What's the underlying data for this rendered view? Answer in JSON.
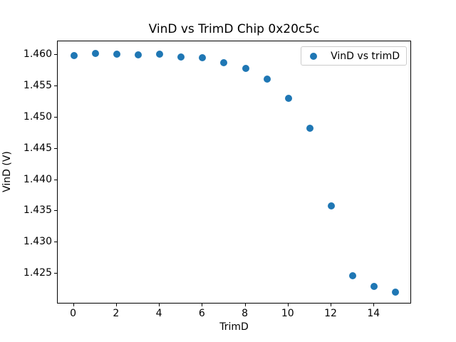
{
  "chart_data": {
    "type": "scatter",
    "title": "VinD vs TrimD Chip 0x20c5c",
    "xlabel": "TrimD",
    "ylabel": "VinD (V)",
    "x": [
      0,
      1,
      2,
      3,
      4,
      5,
      6,
      7,
      8,
      9,
      10,
      11,
      12,
      13,
      14,
      15
    ],
    "y": [
      1.4599,
      1.4603,
      1.4601,
      1.46,
      1.4601,
      1.4597,
      1.4596,
      1.4588,
      1.4579,
      1.4562,
      1.4531,
      1.4483,
      1.4358,
      1.4247,
      1.4229,
      1.422
    ],
    "series": [
      {
        "name": "VinD vs trimD",
        "marker": "circle-dot",
        "color": "#1f77b4"
      }
    ],
    "xlim": [
      -0.75,
      15.75
    ],
    "ylim": [
      1.4201,
      1.4622
    ],
    "xticks": [
      0,
      2,
      4,
      6,
      8,
      10,
      12,
      14
    ],
    "yticks": [
      1.425,
      1.43,
      1.435,
      1.44,
      1.445,
      1.45,
      1.455,
      1.46
    ],
    "ytick_label_format_decimals": 3,
    "grid": false,
    "legend": {
      "label": "VinD vs trimD",
      "position": "upper right",
      "marker_color": "#1f77b4"
    },
    "colors": {
      "marker": "#1f77b4",
      "spine": "#000000",
      "background": "#ffffff",
      "legend_border": "#cccccc",
      "text": "#000000"
    }
  }
}
